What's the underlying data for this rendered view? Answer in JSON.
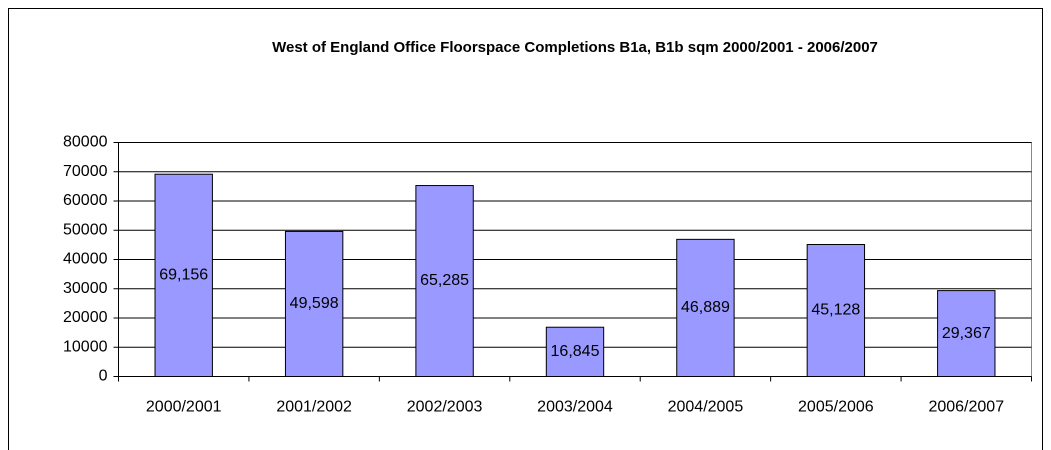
{
  "chart_data": {
    "type": "bar",
    "title": "West of England Office Floorspace Completions B1a, B1b sqm 2000/2001 - 2006/2007",
    "categories": [
      "2000/2001",
      "2001/2002",
      "2002/2003",
      "2003/2004",
      "2004/2005",
      "2005/2006",
      "2006/2007"
    ],
    "values": [
      69156,
      49598,
      65285,
      16845,
      46889,
      45128,
      29367
    ],
    "value_labels": [
      "69,156",
      "49,598",
      "65,285",
      "16,845",
      "46,889",
      "45,128",
      "29,367"
    ],
    "color": "#9999ff",
    "ylim": [
      0,
      80000
    ],
    "yticks": [
      0,
      10000,
      20000,
      30000,
      40000,
      50000,
      60000,
      70000,
      80000
    ],
    "grid": true
  }
}
